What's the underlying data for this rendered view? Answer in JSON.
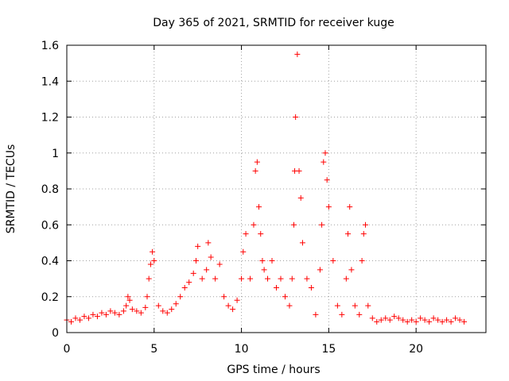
{
  "chart_data": {
    "type": "scatter",
    "title": "Day 365 of 2021, SRMTID for receiver kuge",
    "xlabel": "GPS time / hours",
    "ylabel": "SRMTID / TECUs",
    "xlim": [
      0,
      24
    ],
    "ylim": [
      0,
      1.6
    ],
    "xticks": [
      0,
      5,
      10,
      15,
      20
    ],
    "xtick_labels": [
      "0",
      "5",
      "10",
      "15",
      "20"
    ],
    "yticks": [
      0,
      0.2,
      0.4,
      0.6,
      0.8,
      1.0,
      1.2,
      1.4,
      1.6
    ],
    "ytick_labels": [
      "0",
      "0.2",
      "0.4",
      "0.6",
      "0.8",
      "1",
      "1.2",
      "1.4",
      "1.6"
    ],
    "grid": true,
    "marker": "+",
    "color": "#ff0000",
    "series": [
      {
        "name": "SRMTID",
        "x": [
          0.0,
          0.25,
          0.5,
          0.75,
          1.0,
          1.25,
          1.5,
          1.75,
          2.0,
          2.25,
          2.5,
          2.75,
          3.0,
          3.25,
          3.4,
          3.5,
          3.6,
          3.75,
          4.0,
          4.25,
          4.5,
          4.6,
          4.7,
          4.8,
          4.9,
          5.0,
          5.25,
          5.5,
          5.75,
          6.0,
          6.25,
          6.5,
          6.75,
          7.0,
          7.25,
          7.4,
          7.5,
          7.75,
          8.0,
          8.1,
          8.25,
          8.5,
          8.75,
          9.0,
          9.25,
          9.5,
          9.75,
          10.0,
          10.1,
          10.25,
          10.5,
          10.7,
          10.8,
          10.9,
          11.0,
          11.1,
          11.2,
          11.3,
          11.5,
          11.75,
          12.0,
          12.25,
          12.5,
          12.75,
          12.9,
          13.0,
          13.05,
          13.1,
          13.2,
          13.3,
          13.4,
          13.5,
          13.75,
          14.0,
          14.25,
          14.5,
          14.6,
          14.7,
          14.8,
          14.9,
          15.0,
          15.25,
          15.5,
          15.75,
          16.0,
          16.1,
          16.2,
          16.3,
          16.5,
          16.75,
          16.9,
          17.0,
          17.1,
          17.25,
          17.5,
          17.75,
          18.0,
          18.25,
          18.5,
          18.75,
          19.0,
          19.25,
          19.5,
          19.75,
          20.0,
          20.25,
          20.5,
          20.75,
          21.0,
          21.25,
          21.5,
          21.75,
          22.0,
          22.25,
          22.5,
          22.75
        ],
        "y": [
          0.07,
          0.06,
          0.08,
          0.07,
          0.09,
          0.08,
          0.1,
          0.09,
          0.11,
          0.1,
          0.12,
          0.11,
          0.1,
          0.12,
          0.15,
          0.2,
          0.18,
          0.13,
          0.12,
          0.11,
          0.14,
          0.2,
          0.3,
          0.38,
          0.45,
          0.4,
          0.15,
          0.12,
          0.11,
          0.13,
          0.16,
          0.2,
          0.25,
          0.28,
          0.33,
          0.4,
          0.48,
          0.3,
          0.35,
          0.5,
          0.42,
          0.3,
          0.38,
          0.2,
          0.15,
          0.13,
          0.18,
          0.3,
          0.45,
          0.55,
          0.3,
          0.6,
          0.9,
          0.95,
          0.7,
          0.55,
          0.4,
          0.35,
          0.3,
          0.4,
          0.25,
          0.3,
          0.2,
          0.15,
          0.3,
          0.6,
          0.9,
          1.2,
          1.55,
          0.9,
          0.75,
          0.5,
          0.3,
          0.25,
          0.1,
          0.35,
          0.6,
          0.95,
          1.0,
          0.85,
          0.7,
          0.4,
          0.15,
          0.1,
          0.3,
          0.55,
          0.7,
          0.35,
          0.15,
          0.1,
          0.4,
          0.55,
          0.6,
          0.15,
          0.08,
          0.06,
          0.07,
          0.08,
          0.07,
          0.09,
          0.08,
          0.07,
          0.06,
          0.07,
          0.06,
          0.08,
          0.07,
          0.06,
          0.08,
          0.07,
          0.06,
          0.07,
          0.06,
          0.08,
          0.07,
          0.06
        ]
      }
    ]
  }
}
